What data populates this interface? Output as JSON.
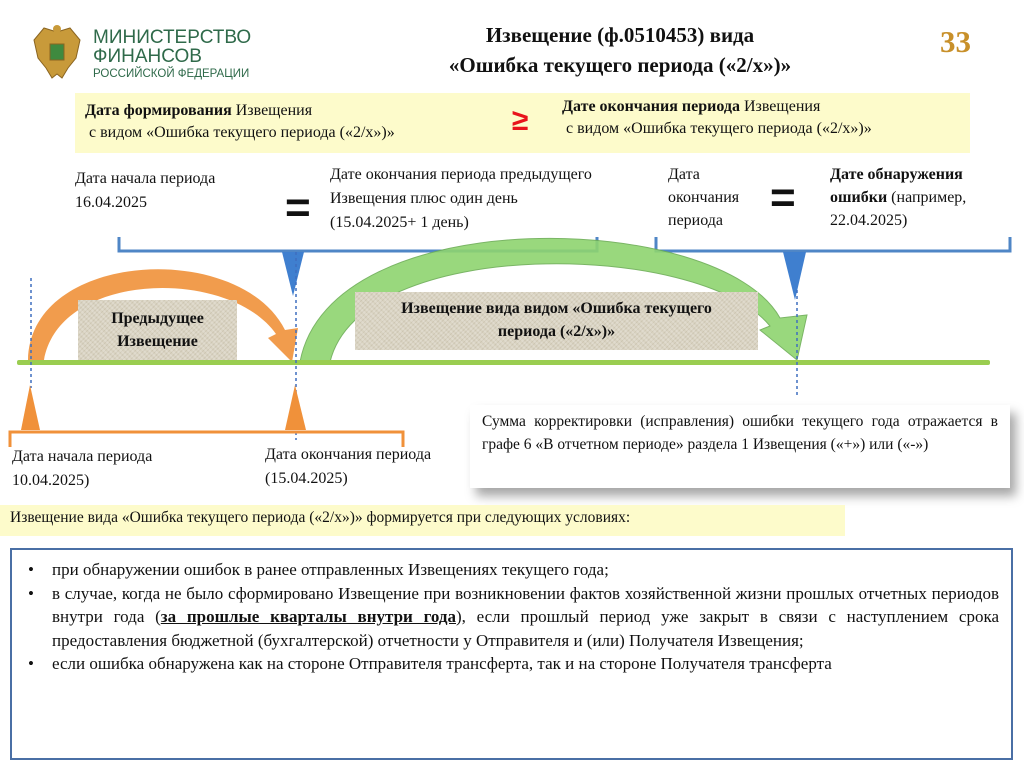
{
  "header": {
    "ministry_line1": "МИНИСТЕРСТВО",
    "ministry_line2": "ФИНАНСОВ",
    "ministry_line3": "РОССИЙСКОЙ ФЕДЕРАЦИИ",
    "emblem_icon": "double-headed-eagle-emblem",
    "title_line1": "Извещение (ф.0510453) вида",
    "title_line2": "«Ошибка текущего периода («2/х»)»",
    "page_number": "33"
  },
  "rule": {
    "left_bold": "Дата формирования",
    "left_rest": " Извещения",
    "left_line2": "с видом «Ошибка текущего периода («2/х»)»",
    "operator": "≥",
    "right_bold": "Дате окончания периода",
    "right_rest": " Извещения",
    "right_line2": "с видом «Ошибка текущего периода («2/х»)»"
  },
  "upper": {
    "start_label": "Дата начала периода 16.04.2025",
    "equals1": "=",
    "start_equiv": "Дате окончания периода предыдущего Извещения плюс один день (15.04.2025+ 1 день)",
    "end_label": "Дата окончания периода",
    "equals2": "=",
    "end_equiv_bold": "Дате обнаружения ошибки",
    "end_equiv_rest": " (например, 22.04.2025)"
  },
  "timeline": {
    "prev_notice": "Предыдущее Извещение",
    "current_notice": "Извещение вида видом «Ошибка текущего периода («2/х»)»",
    "colors": {
      "orange": "#f0913a",
      "green": "#8fd470",
      "blue": "#3f7fcf",
      "timeline": "#9acd50"
    }
  },
  "lower": {
    "prev_start": "Дата начала периода 10.04.2025)",
    "prev_end": "Дата окончания периода (15.04.2025)"
  },
  "note": "Сумма корректировки (исправления) ошибки текущего года отражается в графе 6 «В отчетном периоде» раздела 1 Извещения («+») или («-»)",
  "conditions_header": "Извещение вида «Ошибка текущего периода («2/х»)» формируется  при следующих условиях:",
  "conditions": {
    "item1": "при обнаружении ошибок в ранее отправленных Извещениях текущего года;",
    "item2_a": "в случае, когда не было сформировано Извещение при возникновении фактов хозяйственной жизни прошлых отчетных периодов внутри года (",
    "item2_bold": "за прошлые кварталы внутри года",
    "item2_b": "), если прошлый период уже закрыт в связи с наступлением срока предоставления бюджетной (бухгалтерской) отчетности у Отправителя и (или) Получателя Извещения;",
    "item3": "если ошибка обнаружена как на стороне Отправителя трансферта, так и на стороне Получателя трансферта"
  }
}
